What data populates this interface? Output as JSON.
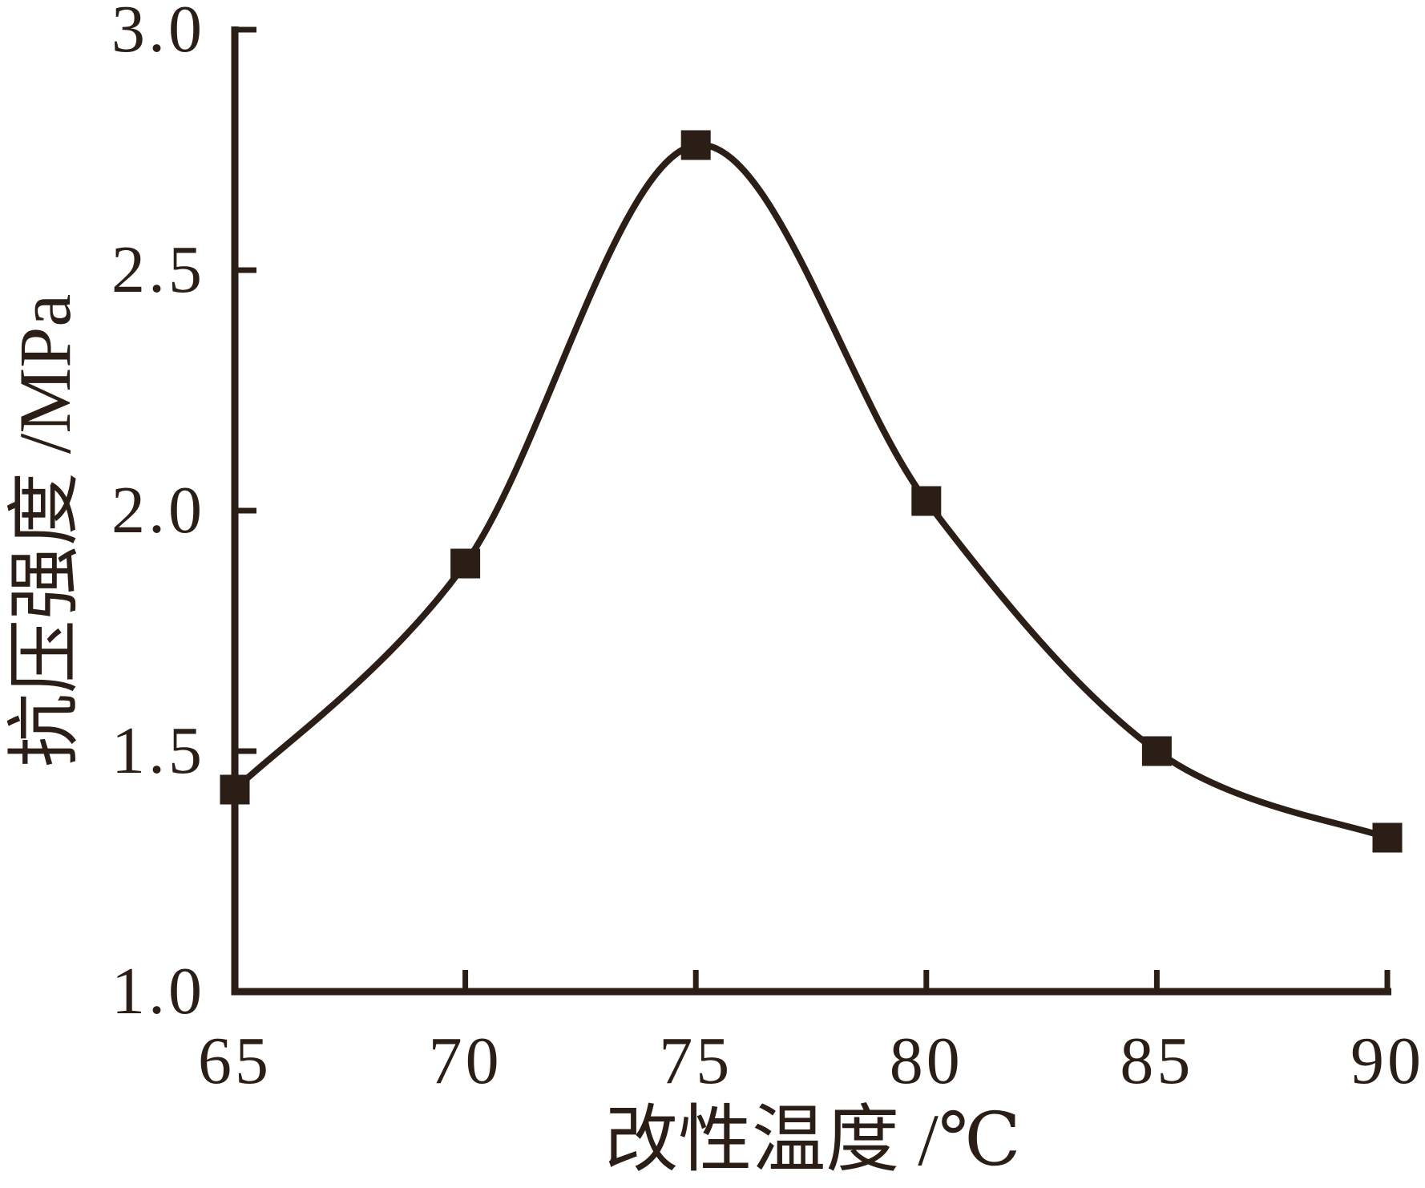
{
  "chart_data": {
    "type": "line",
    "title": "",
    "xlabel": "改性温度 /℃",
    "ylabel": "抗压强度 /MPa",
    "x": [
      65,
      70,
      75,
      80,
      85,
      90
    ],
    "series": [
      {
        "name": "抗压强度",
        "values": [
          1.42,
          1.89,
          2.76,
          2.02,
          1.5,
          1.32
        ]
      }
    ],
    "xlim": [
      65,
      90
    ],
    "ylim": [
      1.0,
      3.0
    ],
    "x_ticks": [
      65,
      70,
      75,
      80,
      85,
      90
    ],
    "x_tick_labels": [
      "65",
      "70",
      "75",
      "80",
      "85",
      "90"
    ],
    "y_ticks": [
      1.0,
      1.5,
      2.0,
      2.5,
      3.0
    ],
    "y_tick_labels": [
      "1.0",
      "1.5",
      "2.0",
      "2.5",
      "3.0"
    ],
    "marker": "square",
    "line_smooth": true,
    "grid": false,
    "legend": null,
    "colors": {
      "ink": "#2a1e16",
      "background": "#ffffff"
    }
  }
}
